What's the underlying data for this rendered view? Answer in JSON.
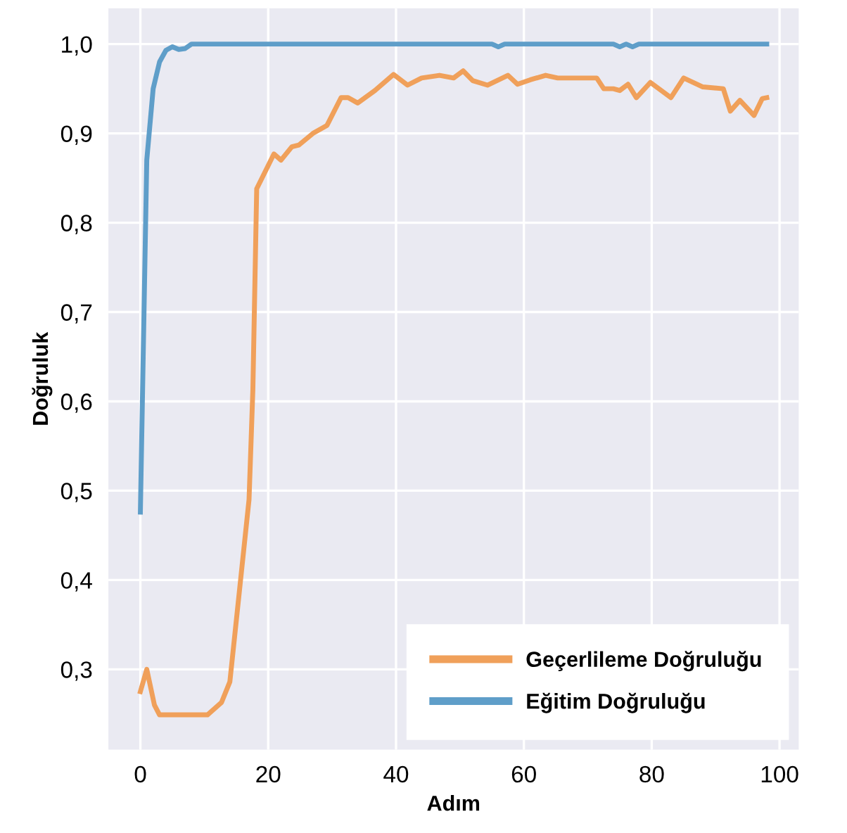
{
  "chart_data": {
    "type": "line",
    "xlabel": "Adım",
    "ylabel": "Doğruluk",
    "xlim": [
      -5,
      103
    ],
    "ylim": [
      0.21,
      1.04
    ],
    "xticks": [
      0,
      20,
      40,
      60,
      80,
      100
    ],
    "yticks": [
      {
        "value": 0.3,
        "label": "0,3"
      },
      {
        "value": 0.4,
        "label": "0,4"
      },
      {
        "value": 0.5,
        "label": "0,5"
      },
      {
        "value": 0.6,
        "label": "0,6"
      },
      {
        "value": 0.7,
        "label": "0,7"
      },
      {
        "value": 0.8,
        "label": "0,8"
      },
      {
        "value": 0.9,
        "label": "0,9"
      },
      {
        "value": 1.0,
        "label": "1,0"
      }
    ],
    "grid": true,
    "legend": "bottom right",
    "line_style": "solid",
    "series": [
      {
        "name": "Geçerlileme Doğruluğu",
        "color": "#f0a05a",
        "x": [
          0,
          1,
          2.2,
          3,
          10.5,
          12.7,
          14,
          17,
          17.6,
          18.2,
          20.9,
          22,
          23.7,
          24.8,
          27,
          29.2,
          31.4,
          32.5,
          34,
          36.7,
          39.6,
          41.8,
          44,
          46.8,
          49,
          50.5,
          52,
          54.3,
          57.5,
          59,
          61,
          63.4,
          65.3,
          71.4,
          72.5,
          74,
          75,
          76.3,
          77.6,
          79.8,
          83,
          85,
          88,
          91.2,
          92.3,
          93.8,
          96,
          97.3,
          98
        ],
        "values": [
          0.275,
          0.3,
          0.26,
          0.249,
          0.249,
          0.263,
          0.286,
          0.49,
          0.613,
          0.838,
          0.877,
          0.87,
          0.885,
          0.887,
          0.9,
          0.909,
          0.94,
          0.94,
          0.934,
          0.948,
          0.966,
          0.954,
          0.962,
          0.965,
          0.962,
          0.97,
          0.959,
          0.954,
          0.965,
          0.955,
          0.96,
          0.965,
          0.962,
          0.962,
          0.95,
          0.95,
          0.948,
          0.955,
          0.94,
          0.957,
          0.94,
          0.962,
          0.952,
          0.95,
          0.925,
          0.937,
          0.92,
          0.939,
          0.94
        ]
      },
      {
        "name": "Eğitim Doğruluğu",
        "color": "#5f9ec9",
        "x": [
          0,
          1,
          2,
          3,
          4,
          5,
          6,
          7,
          8,
          55,
          56,
          57,
          74,
          75,
          76,
          77,
          78,
          98
        ],
        "values": [
          0.476,
          0.87,
          0.95,
          0.98,
          0.993,
          0.997,
          0.994,
          0.995,
          1.0,
          1.0,
          0.997,
          1.0,
          1.0,
          0.997,
          1.0,
          0.997,
          1.0,
          1.0
        ]
      }
    ]
  }
}
